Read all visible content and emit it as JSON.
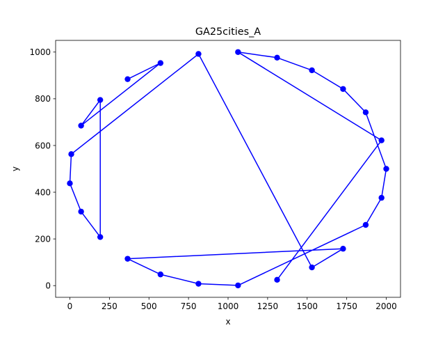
{
  "chart_data": {
    "type": "line",
    "title": "GA25cities_A",
    "xlabel": "x",
    "ylabel": "y",
    "xlim": [
      -90,
      2090
    ],
    "ylim": [
      -50,
      1050
    ],
    "xticks": [
      0,
      250,
      500,
      750,
      1000,
      1250,
      1500,
      1750,
      2000
    ],
    "yticks": [
      0,
      200,
      400,
      600,
      800,
      1000
    ],
    "grid": false,
    "legend": "none",
    "colors": {
      "route": "#0000ff",
      "axes": "#000000",
      "background": "#ffffff"
    },
    "series": [
      {
        "marker": "circle",
        "points": [
          [
            1310,
            25
          ],
          [
            1970,
            622
          ],
          [
            1063,
            1000
          ],
          [
            1310,
            976
          ],
          [
            1530,
            922
          ],
          [
            1727,
            842
          ],
          [
            1870,
            742
          ],
          [
            2000,
            500
          ],
          [
            1970,
            376
          ],
          [
            1870,
            260
          ],
          [
            1063,
            1
          ],
          [
            813,
            8
          ],
          [
            573,
            48
          ],
          [
            365,
            115
          ],
          [
            1727,
            158
          ],
          [
            1530,
            78
          ],
          [
            813,
            992
          ],
          [
            9,
            563
          ],
          [
            0,
            438
          ],
          [
            71,
            317
          ],
          [
            192,
            208
          ],
          [
            192,
            795
          ],
          [
            71,
            685
          ],
          [
            573,
            953
          ],
          [
            365,
            884
          ]
        ]
      }
    ]
  }
}
